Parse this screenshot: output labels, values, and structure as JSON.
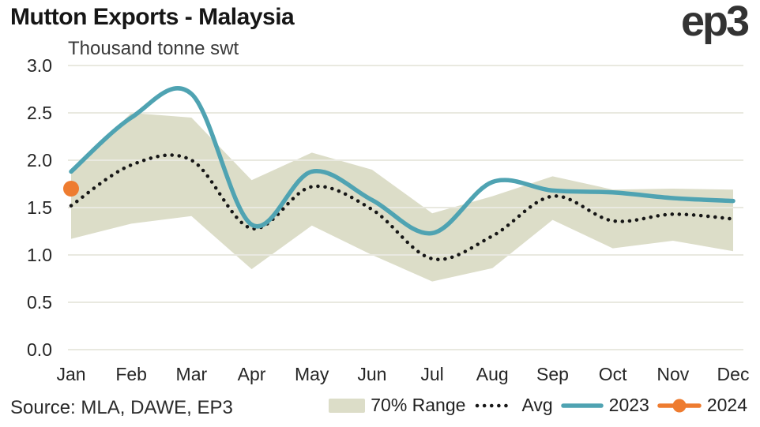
{
  "header": {
    "title": "Mutton Exports - Malaysia",
    "logo": "ep3"
  },
  "footer": {
    "source": "Source: MLA, DAWE, EP3"
  },
  "legend": {
    "items": [
      {
        "label": "70% Range",
        "key": "band-swatch"
      },
      {
        "label": "Avg",
        "key": "dotted-line"
      },
      {
        "label": "2023",
        "key": "solid-line"
      },
      {
        "label": "2024",
        "key": "line-with-dot"
      }
    ]
  },
  "colors": {
    "teal": "#4FA3B2",
    "band": "#DCDDC8",
    "orange": "#EE7C30",
    "ink": "#161616",
    "grid": "#E9E9E0",
    "text": "#222222",
    "logo": "#333333"
  },
  "chart_data": {
    "type": "line",
    "title": "Mutton Exports - Malaysia",
    "ylabel": "Thousand tonne swt",
    "xlabel": "",
    "categories": [
      "Jan",
      "Feb",
      "Mar",
      "Apr",
      "May",
      "Jun",
      "Jul",
      "Aug",
      "Sep",
      "Oct",
      "Nov",
      "Dec"
    ],
    "ylim": [
      0,
      3
    ],
    "yticks": [
      0,
      0.5,
      1,
      1.5,
      2,
      2.5,
      3
    ],
    "ytick_labels": [
      "0.0",
      "0.5",
      "1.0",
      "1.5",
      "2.0",
      "2.5",
      "3.0"
    ],
    "grid": "horizontal",
    "legend_position": "bottom-right",
    "series": [
      {
        "name": "70% Range",
        "type": "band",
        "low": [
          1.17,
          1.33,
          1.41,
          0.85,
          1.31,
          1.0,
          0.72,
          0.86,
          1.37,
          1.07,
          1.15,
          1.04
        ],
        "high": [
          1.86,
          2.5,
          2.45,
          1.79,
          2.08,
          1.9,
          1.44,
          1.62,
          1.83,
          1.69,
          1.7,
          1.69
        ]
      },
      {
        "name": "Avg",
        "type": "dotted-line",
        "values": [
          1.52,
          1.95,
          2.0,
          1.28,
          1.72,
          1.48,
          0.96,
          1.2,
          1.62,
          1.36,
          1.43,
          1.38
        ]
      },
      {
        "name": "2023",
        "type": "line",
        "values": [
          1.88,
          2.45,
          2.7,
          1.32,
          1.88,
          1.58,
          1.23,
          1.77,
          1.68,
          1.66,
          1.6,
          1.57
        ]
      },
      {
        "name": "2024",
        "type": "point",
        "values": [
          1.7,
          null,
          null,
          null,
          null,
          null,
          null,
          null,
          null,
          null,
          null,
          null
        ]
      }
    ]
  }
}
